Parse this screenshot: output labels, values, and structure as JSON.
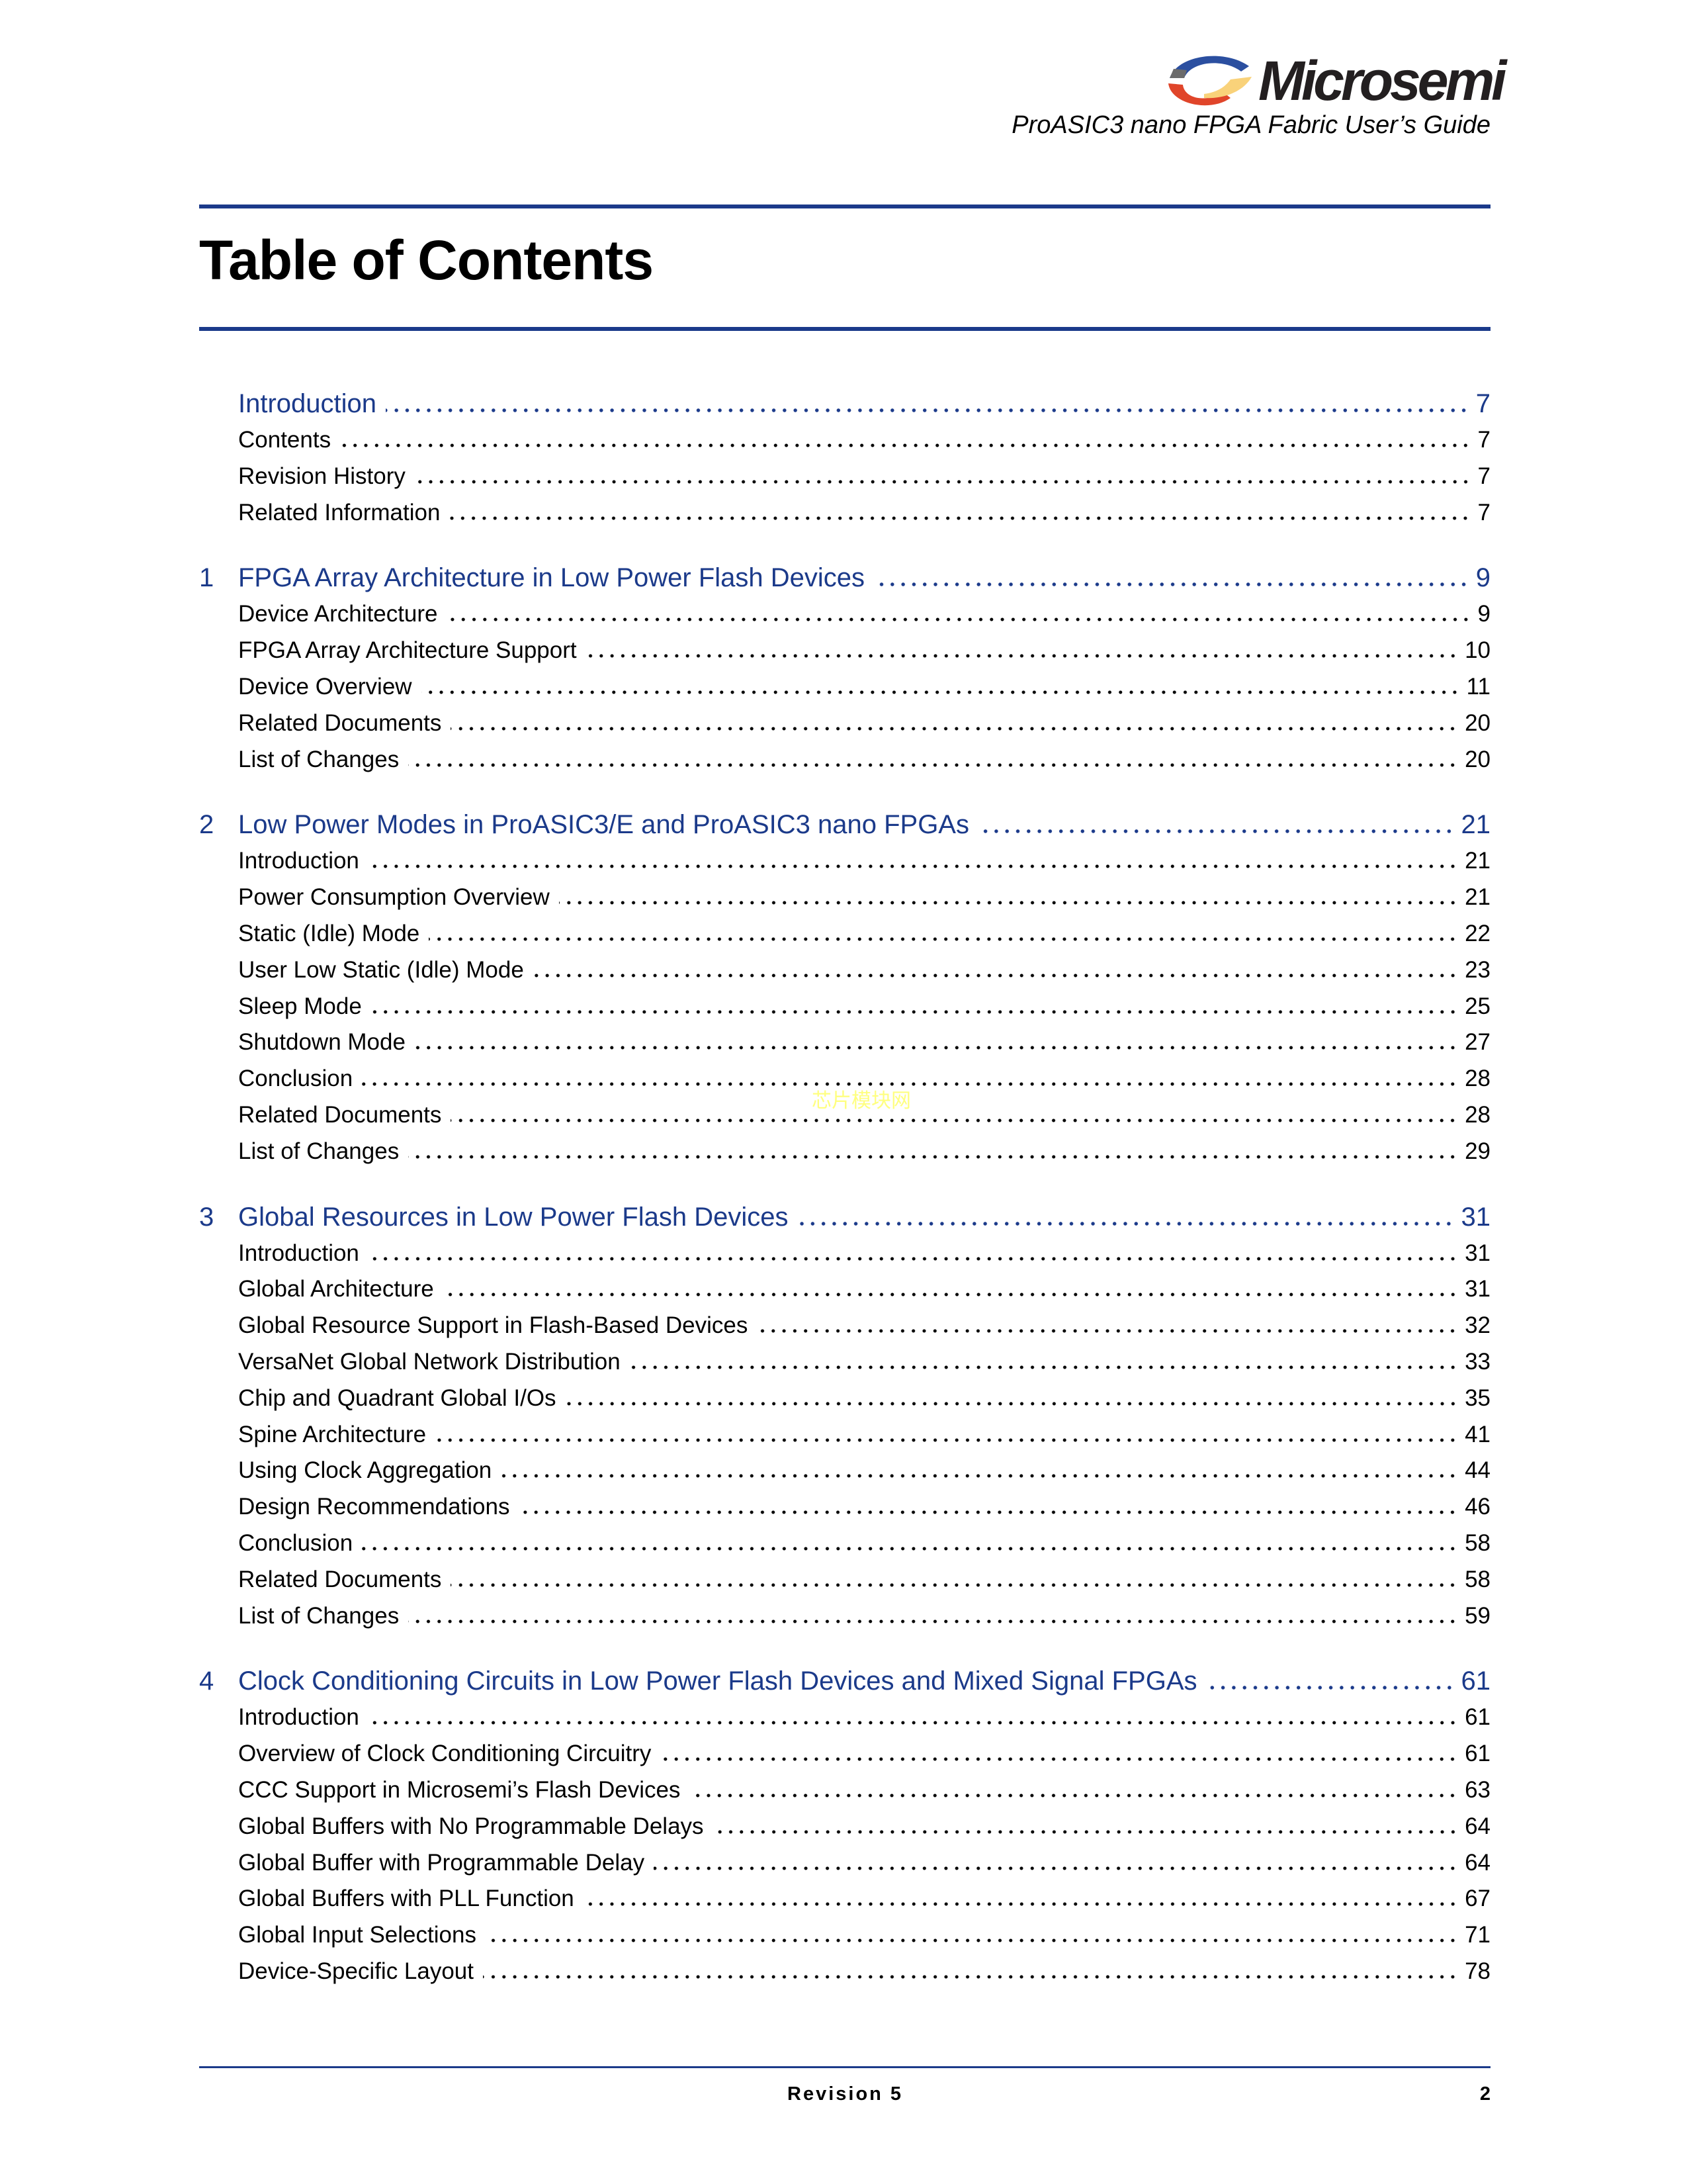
{
  "header": {
    "logo_text": "Microsemi",
    "subtitle": "ProASIC3 nano FPGA Fabric User’s Guide"
  },
  "title": "Table of Contents",
  "colors": {
    "accent": "#1b3a8a",
    "logo_blue": "#2b4fa0",
    "logo_red": "#e0452a",
    "logo_yellow": "#f9d27a",
    "logo_gray": "#6b6b6b"
  },
  "toc": [
    {
      "number": "",
      "title": "Introduction",
      "page": "7",
      "items": [
        {
          "title": "Contents",
          "page": "7"
        },
        {
          "title": "Revision History",
          "page": "7"
        },
        {
          "title": "Related Information",
          "page": "7"
        }
      ]
    },
    {
      "number": "1",
      "title": "FPGA Array Architecture in Low Power Flash Devices",
      "page": "9",
      "items": [
        {
          "title": "Device Architecture",
          "page": "9"
        },
        {
          "title": "FPGA Array Architecture Support",
          "page": "10"
        },
        {
          "title": "Device Overview",
          "page": "11"
        },
        {
          "title": "Related Documents",
          "page": "20"
        },
        {
          "title": "List of Changes",
          "page": "20"
        }
      ]
    },
    {
      "number": "2",
      "title": "Low Power Modes in ProASIC3/E and ProASIC3 nano FPGAs",
      "page": "21",
      "items": [
        {
          "title": "Introduction",
          "page": "21"
        },
        {
          "title": "Power Consumption Overview",
          "page": "21"
        },
        {
          "title": "Static (Idle) Mode",
          "page": "22"
        },
        {
          "title": "User Low Static (Idle) Mode",
          "page": "23"
        },
        {
          "title": "Sleep Mode",
          "page": "25"
        },
        {
          "title": "Shutdown Mode",
          "page": "27"
        },
        {
          "title": "Conclusion",
          "page": "28"
        },
        {
          "title": "Related Documents",
          "page": "28"
        },
        {
          "title": "List of Changes",
          "page": "29"
        }
      ]
    },
    {
      "number": "3",
      "title": "Global Resources in Low Power Flash Devices",
      "page": "31",
      "items": [
        {
          "title": "Introduction",
          "page": "31"
        },
        {
          "title": "Global Architecture",
          "page": "31"
        },
        {
          "title": "Global Resource Support in Flash-Based Devices",
          "page": "32"
        },
        {
          "title": "VersaNet Global Network Distribution",
          "page": "33"
        },
        {
          "title": "Chip and Quadrant Global I/Os",
          "page": "35"
        },
        {
          "title": "Spine Architecture",
          "page": "41"
        },
        {
          "title": "Using Clock Aggregation",
          "page": "44"
        },
        {
          "title": "Design Recommendations",
          "page": "46"
        },
        {
          "title": "Conclusion",
          "page": "58"
        },
        {
          "title": "Related Documents",
          "page": "58"
        },
        {
          "title": "List of Changes",
          "page": "59"
        }
      ]
    },
    {
      "number": "4",
      "title": "Clock Conditioning Circuits in Low Power Flash Devices and Mixed Signal FPGAs",
      "page": "61",
      "items": [
        {
          "title": "Introduction",
          "page": "61"
        },
        {
          "title": "Overview of Clock Conditioning Circuitry",
          "page": "61"
        },
        {
          "title": "CCC Support in Microsemi’s Flash Devices",
          "page": "63"
        },
        {
          "title": "Global Buffers with No Programmable Delays",
          "page": "64"
        },
        {
          "title": "Global Buffer with Programmable Delay",
          "page": "64"
        },
        {
          "title": "Global Buffers with PLL Function",
          "page": "67"
        },
        {
          "title": "Global Input Selections",
          "page": "71"
        },
        {
          "title": "Device-Specific Layout",
          "page": "78"
        }
      ]
    }
  ],
  "watermark": "芯片模块网",
  "footer": {
    "revision": "Revision 5",
    "page_number": "2"
  }
}
